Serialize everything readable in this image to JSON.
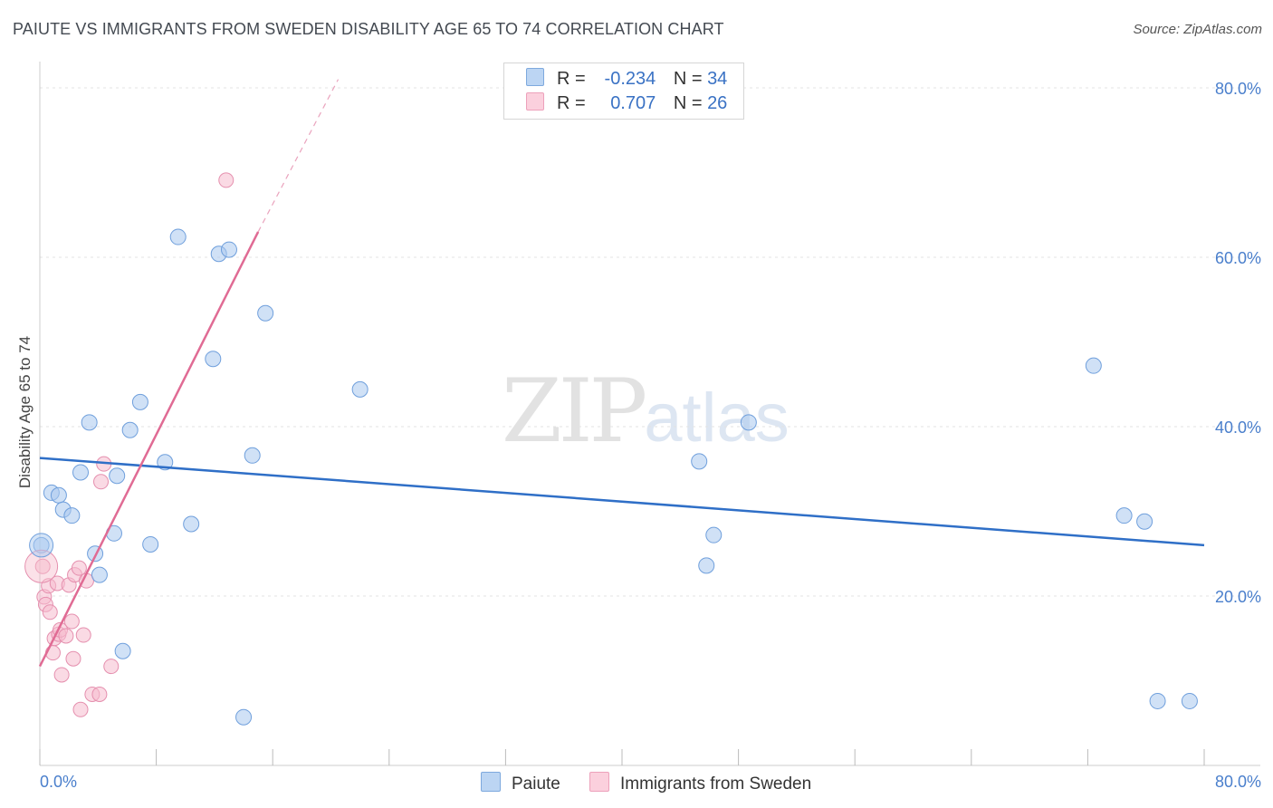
{
  "chart_data": {
    "type": "scatter",
    "title": "PAIUTE VS IMMIGRANTS FROM SWEDEN DISABILITY AGE 65 TO 74 CORRELATION CHART",
    "source": "Source: ZipAtlas.com",
    "ylabel": "Disability Age 65 to 74",
    "xlabel": "",
    "xlim": [
      0,
      80
    ],
    "ylim": [
      0,
      80
    ],
    "x_tick_labels": [
      "0.0%",
      "80.0%"
    ],
    "y_ticks": [
      20,
      40,
      60,
      80
    ],
    "y_tick_labels": [
      "20.0%",
      "40.0%",
      "60.0%",
      "80.0%"
    ],
    "grid": true,
    "legend_position": "top-center",
    "colors": {
      "paiute_fill": "#a9c9ef",
      "paiute_line": "#2f6fc7",
      "sweden_fill": "#f6bccd",
      "sweden_line": "#e06b94",
      "tick_blue": "#4a7fcc"
    },
    "stats": [
      {
        "r_label": "R =",
        "r_value": "-0.234",
        "n_label": "N =",
        "n_value": "34"
      },
      {
        "r_label": "R =",
        "r_value": "0.707",
        "n_label": "N =",
        "n_value": "26"
      }
    ],
    "series": [
      {
        "name": "Paiute",
        "trend": {
          "x": [
            0,
            80
          ],
          "y": [
            36.3,
            26.0
          ]
        },
        "points": [
          [
            0.1,
            26.0
          ],
          [
            0.8,
            32.2
          ],
          [
            1.3,
            31.9
          ],
          [
            1.6,
            30.2
          ],
          [
            2.2,
            29.5
          ],
          [
            2.8,
            34.6
          ],
          [
            3.4,
            40.5
          ],
          [
            3.8,
            25.0
          ],
          [
            4.1,
            22.5
          ],
          [
            5.1,
            27.4
          ],
          [
            5.3,
            34.2
          ],
          [
            5.7,
            13.5
          ],
          [
            6.2,
            39.6
          ],
          [
            6.9,
            42.9
          ],
          [
            7.6,
            26.1
          ],
          [
            8.6,
            35.8
          ],
          [
            9.5,
            62.4
          ],
          [
            10.4,
            28.5
          ],
          [
            11.9,
            48.0
          ],
          [
            12.3,
            60.4
          ],
          [
            13.0,
            60.9
          ],
          [
            14.0,
            5.7
          ],
          [
            14.6,
            36.6
          ],
          [
            15.5,
            53.4
          ],
          [
            22.0,
            44.4
          ],
          [
            45.3,
            35.9
          ],
          [
            46.3,
            27.2
          ],
          [
            45.8,
            23.6
          ],
          [
            48.7,
            40.5
          ],
          [
            72.4,
            47.2
          ],
          [
            74.5,
            29.5
          ],
          [
            75.9,
            28.8
          ],
          [
            76.8,
            7.6
          ],
          [
            79.0,
            7.6
          ]
        ]
      },
      {
        "name": "Immigrants from Sweden",
        "trend": {
          "x": [
            0,
            15
          ],
          "y": [
            11.7,
            63.0
          ]
        },
        "trend_dashed": {
          "x": [
            15,
            20.5
          ],
          "y": [
            63.0,
            81.0
          ]
        },
        "points": [
          [
            0.2,
            23.5
          ],
          [
            0.3,
            19.9
          ],
          [
            0.4,
            19.0
          ],
          [
            0.6,
            21.2
          ],
          [
            0.7,
            18.1
          ],
          [
            0.9,
            13.3
          ],
          [
            1.0,
            15.0
          ],
          [
            1.2,
            21.5
          ],
          [
            1.3,
            15.5
          ],
          [
            1.4,
            16.0
          ],
          [
            1.5,
            10.7
          ],
          [
            1.8,
            15.3
          ],
          [
            2.0,
            21.3
          ],
          [
            2.2,
            17.0
          ],
          [
            2.3,
            12.6
          ],
          [
            2.4,
            22.5
          ],
          [
            2.7,
            23.3
          ],
          [
            2.8,
            6.6
          ],
          [
            3.0,
            15.4
          ],
          [
            3.6,
            8.4
          ],
          [
            4.1,
            8.4
          ],
          [
            4.2,
            33.5
          ],
          [
            4.4,
            35.6
          ],
          [
            4.9,
            11.7
          ],
          [
            12.8,
            69.1
          ],
          [
            3.2,
            21.8
          ]
        ]
      }
    ]
  },
  "legend_bottom": [
    {
      "label": "Paiute"
    },
    {
      "label": "Immigrants from Sweden"
    }
  ],
  "watermark": {
    "zip": "ZIP",
    "atlas": "atlas"
  }
}
